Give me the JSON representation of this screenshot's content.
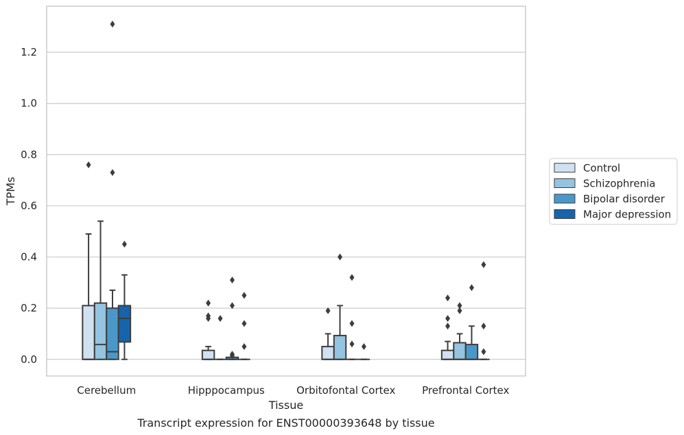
{
  "chart_data": {
    "type": "box",
    "title": "Transcript expression for ENST00000393648 by tissue",
    "xlabel": "Tissue",
    "ylabel": "TPMs",
    "ylim": [
      -0.065,
      1.38
    ],
    "yticks": [
      0.0,
      0.2,
      0.4,
      0.6,
      0.8,
      1.0,
      1.2
    ],
    "ytick_labels": [
      "0.0",
      "0.2",
      "0.4",
      "0.6",
      "0.8",
      "1.0",
      "1.2"
    ],
    "grid": "horizontal",
    "legend_position": "right",
    "categories": [
      "Cerebellum",
      "Hipppocampus",
      "Orbitofontal Cortex",
      "Prefrontal Cortex"
    ],
    "series": [
      {
        "name": "Control",
        "color": "#d0e1f2",
        "boxes": [
          {
            "whislo": 0,
            "q1": 0,
            "med": 0,
            "q3": 0.21,
            "whishi": 0.49,
            "fliers": [
              0.76
            ]
          },
          {
            "whislo": 0,
            "q1": 0,
            "med": 0,
            "q3": 0.035,
            "whishi": 0.05,
            "fliers": [
              0.16,
              0.17,
              0.22
            ]
          },
          {
            "whislo": 0,
            "q1": 0,
            "med": 0,
            "q3": 0.05,
            "whishi": 0.1,
            "fliers": [
              0.19
            ]
          },
          {
            "whislo": 0,
            "q1": 0,
            "med": 0,
            "q3": 0.035,
            "whishi": 0.07,
            "fliers": [
              0.13,
              0.16,
              0.24
            ]
          }
        ]
      },
      {
        "name": "Schizophrenia",
        "color": "#94c4df",
        "boxes": [
          {
            "whislo": 0,
            "q1": 0,
            "med": 0.058,
            "q3": 0.22,
            "whishi": 0.54,
            "fliers": []
          },
          {
            "whislo": 0,
            "q1": 0,
            "med": 0,
            "q3": 0,
            "whishi": 0,
            "fliers": [
              0.16
            ]
          },
          {
            "whislo": 0,
            "q1": 0,
            "med": 0,
            "q3": 0.093,
            "whishi": 0.21,
            "fliers": [
              0.4
            ]
          },
          {
            "whislo": 0,
            "q1": 0,
            "med": 0,
            "q3": 0.065,
            "whishi": 0.1,
            "fliers": [
              0.19,
              0.21
            ]
          }
        ]
      },
      {
        "name": "Bipolar disorder",
        "color": "#4a98c9",
        "boxes": [
          {
            "whislo": 0,
            "q1": 0,
            "med": 0.03,
            "q3": 0.2,
            "whishi": 0.27,
            "fliers": [
              0.73,
              1.31
            ]
          },
          {
            "whislo": 0,
            "q1": 0,
            "med": 0,
            "q3": 0.008,
            "whishi": 0.008,
            "fliers": [
              0.015,
              0.02,
              0.21,
              0.31
            ]
          },
          {
            "whislo": 0,
            "q1": 0,
            "med": 0,
            "q3": 0,
            "whishi": 0,
            "fliers": [
              0.06,
              0.14,
              0.32
            ]
          },
          {
            "whislo": 0,
            "q1": 0,
            "med": 0,
            "q3": 0.058,
            "whishi": 0.13,
            "fliers": [
              0.28
            ]
          }
        ]
      },
      {
        "name": "Major depression",
        "color": "#1764ab",
        "boxes": [
          {
            "whislo": 0,
            "q1": 0.068,
            "med": 0.16,
            "q3": 0.21,
            "whishi": 0.33,
            "fliers": [
              0.45
            ]
          },
          {
            "whislo": 0,
            "q1": 0,
            "med": 0,
            "q3": 0,
            "whishi": 0,
            "fliers": [
              0.05,
              0.14,
              0.25
            ]
          },
          {
            "whislo": 0,
            "q1": 0,
            "med": 0,
            "q3": 0,
            "whishi": 0,
            "fliers": [
              0.05
            ]
          },
          {
            "whislo": 0,
            "q1": 0,
            "med": 0,
            "q3": 0,
            "whishi": 0,
            "fliers": [
              0.03,
              0.13,
              0.37
            ]
          }
        ]
      }
    ]
  }
}
